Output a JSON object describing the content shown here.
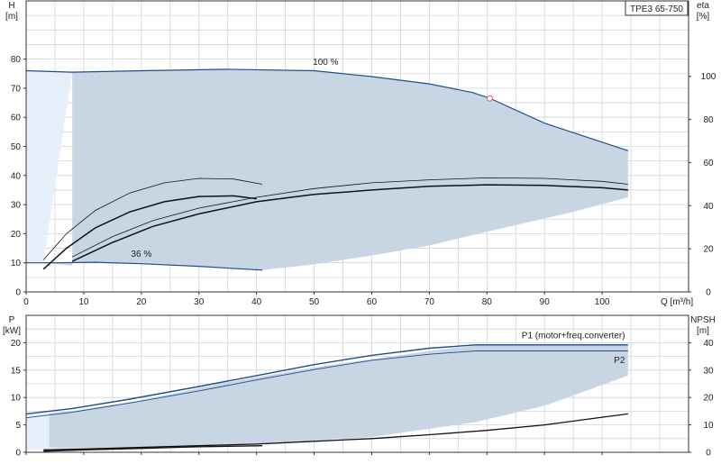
{
  "model_label": "TPE3 65-750",
  "colors": {
    "envelope": "#c8d6e4",
    "envelope_light": "#e6f0fb",
    "curve_blue": "#1f4e8c",
    "curve_black": "#111111",
    "grid": "#d4d4d4",
    "axis": "#333333",
    "duty_point": "#e05a6a",
    "label_blue": "#1f4e8c"
  },
  "chart_data": [
    {
      "type": "line",
      "panel": "head",
      "title": "",
      "xlabel": "Q [m³/h]",
      "ylabel_line1": "H",
      "ylabel_line2": "[m]",
      "y2label_line1": "eta",
      "y2label_line2": "[%]",
      "xlim": [
        0,
        115
      ],
      "ylim": [
        0,
        100
      ],
      "x_ticks": [
        0,
        10,
        20,
        30,
        40,
        50,
        60,
        70,
        80,
        90,
        100
      ],
      "y_ticks": [
        0,
        10,
        20,
        30,
        40,
        50,
        60,
        70,
        80
      ],
      "y2_ticks": [
        0,
        20,
        40,
        60,
        80,
        100
      ],
      "grid": true,
      "annotations": [
        {
          "text": "100 %",
          "x": 52,
          "y": 78
        },
        {
          "text": "36 %",
          "x": 20,
          "y": 12
        }
      ],
      "duty_point": {
        "x": 80.5,
        "y": 66.5
      },
      "envelope": [
        [
          3,
          10
        ],
        [
          8,
          9
        ],
        [
          8,
          75.5
        ],
        [
          20,
          76
        ],
        [
          35,
          76.5
        ],
        [
          50,
          76
        ],
        [
          60,
          74
        ],
        [
          70,
          71.5
        ],
        [
          77.5,
          68.5
        ],
        [
          80,
          66.5
        ],
        [
          90,
          58
        ],
        [
          104.5,
          48.5
        ],
        [
          104.5,
          32.5
        ],
        [
          95,
          27.5
        ],
        [
          85,
          23
        ],
        [
          70,
          16
        ],
        [
          60,
          12.5
        ],
        [
          50,
          9.5
        ],
        [
          41,
          7.5
        ],
        [
          35,
          8.5
        ],
        [
          20,
          9.8
        ],
        [
          8,
          10
        ],
        [
          3,
          10
        ]
      ],
      "light_region": [
        [
          0,
          76
        ],
        [
          8,
          75.5
        ],
        [
          3,
          10
        ],
        [
          0,
          10
        ]
      ],
      "series": [
        {
          "name": "100 %",
          "color": "blue",
          "x": [
            0,
            8,
            20,
            35,
            50,
            60,
            70,
            77.5,
            80.5,
            90,
            104.5
          ],
          "y": [
            76,
            75.5,
            76,
            76.5,
            76,
            74,
            71.5,
            68.5,
            66.5,
            58,
            48.5
          ]
        },
        {
          "name": "36 %",
          "color": "blue",
          "x": [
            0,
            5,
            12,
            20,
            30,
            41
          ],
          "y": [
            10,
            10,
            10.2,
            9.7,
            8.8,
            7.5
          ]
        },
        {
          "name": "",
          "color": "black",
          "width": 1.5,
          "x": [
            3,
            7,
            12,
            18,
            24,
            30,
            36,
            40
          ],
          "y": [
            7.8,
            15,
            22,
            27.5,
            31,
            32.8,
            33,
            32
          ]
        },
        {
          "name": "",
          "color": "black",
          "width": 0.8,
          "x": [
            3,
            7,
            12,
            18,
            24,
            30,
            36,
            41
          ],
          "y": [
            11,
            20,
            28,
            34,
            37.5,
            39,
            38.8,
            37
          ]
        },
        {
          "name": "",
          "color": "black",
          "width": 1.5,
          "x": [
            8,
            15,
            22,
            30,
            40,
            50,
            60,
            70,
            80,
            90,
            100,
            104.5
          ],
          "y": [
            10.5,
            17,
            22.5,
            26.8,
            31,
            33.5,
            35,
            36.3,
            36.8,
            36.6,
            35.8,
            35
          ]
        },
        {
          "name": "",
          "color": "black",
          "width": 0.8,
          "x": [
            8,
            15,
            22,
            30,
            40,
            50,
            60,
            70,
            80,
            90,
            100,
            104.5
          ],
          "y": [
            12,
            19,
            24.5,
            28.8,
            32.5,
            35.5,
            37.5,
            38.5,
            39.2,
            39,
            38,
            37
          ]
        }
      ]
    },
    {
      "type": "line",
      "panel": "power",
      "title": "",
      "xlabel": "",
      "ylabel_line1": "P",
      "ylabel_line2": "[kW]",
      "y2label_line1": "NPSH",
      "y2label_line2": "[m]",
      "xlim": [
        0,
        115
      ],
      "ylim": [
        0,
        25
      ],
      "y_ticks": [
        0,
        5,
        10,
        15,
        20
      ],
      "y2_ticks": [
        0,
        10,
        20,
        30,
        40
      ],
      "grid": true,
      "annotations": [
        {
          "text": "P1 (motor+freq.converter)",
          "x": 95,
          "y": 20.8
        },
        {
          "text": "P2",
          "x": 103,
          "y": 16.3
        }
      ],
      "envelope": [
        [
          8,
          7.5
        ],
        [
          20,
          9.5
        ],
        [
          35,
          12.8
        ],
        [
          50,
          15.5
        ],
        [
          70,
          18.5
        ],
        [
          78,
          19.5
        ],
        [
          104.5,
          19.5
        ],
        [
          104.5,
          14
        ],
        [
          90,
          8.5
        ],
        [
          78,
          5.5
        ],
        [
          60,
          2.8
        ],
        [
          40,
          1.5
        ],
        [
          20,
          0.8
        ],
        [
          8,
          0.7
        ],
        [
          4,
          0.9
        ],
        [
          4,
          7.2
        ],
        [
          8,
          7.5
        ]
      ],
      "light_region": [
        [
          0,
          7
        ],
        [
          4,
          7.2
        ],
        [
          8,
          7.5
        ],
        [
          8,
          0.7
        ],
        [
          0,
          0.5
        ]
      ],
      "series": [
        {
          "name": "P1 (motor+freq.converter)",
          "color": "blue",
          "width": 1.4,
          "x": [
            0,
            8,
            18,
            30,
            40,
            50,
            60,
            70,
            78,
            104.5
          ],
          "y": [
            7,
            8,
            9.7,
            12,
            14,
            16,
            17.7,
            19,
            19.6,
            19.6
          ]
        },
        {
          "name": "P2",
          "color": "blue",
          "width": 0.9,
          "x": [
            0,
            8,
            18,
            30,
            40,
            50,
            60,
            70,
            78,
            104.5
          ],
          "y": [
            6.3,
            7.3,
            9,
            11.2,
            13.2,
            15.1,
            16.8,
            17.9,
            18.5,
            18.5
          ]
        },
        {
          "name": "",
          "color": "black",
          "width": 1.3,
          "x": [
            3,
            10,
            20,
            30,
            40,
            50,
            60,
            70,
            80,
            90,
            100,
            104.5
          ],
          "y": [
            0.45,
            0.6,
            0.9,
            1.2,
            1.5,
            2,
            2.5,
            3.2,
            4,
            5,
            6.4,
            7
          ]
        },
        {
          "name": "",
          "color": "black",
          "width": 1.3,
          "x": [
            3,
            10,
            20,
            30,
            41
          ],
          "y": [
            0.2,
            0.45,
            0.7,
            1,
            1.2
          ]
        }
      ]
    }
  ]
}
